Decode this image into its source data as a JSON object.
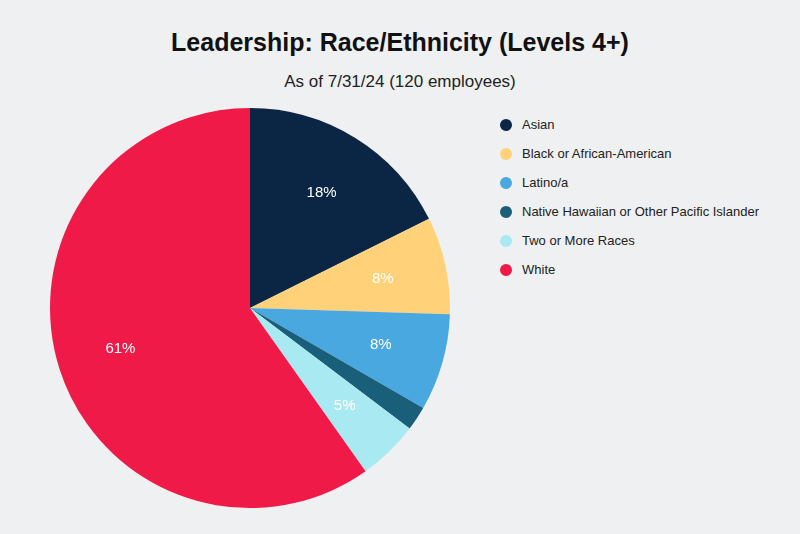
{
  "chart_data": {
    "type": "pie",
    "title": "Leadership: Race/Ethnicity (Levels 4+)",
    "subtitle": "As of 7/31/24 (120 employees)",
    "categories": [
      "Asian",
      "Black or African-American",
      "Latino/a",
      "Native Hawaiian or Other Pacific Islander",
      "Two or More Races",
      "White"
    ],
    "values": [
      18,
      8,
      8,
      2,
      5,
      61
    ],
    "value_labels": [
      "18%",
      "8%",
      "8%",
      null,
      "5%",
      "61%"
    ],
    "colors": [
      "#0b2545",
      "#ffd27a",
      "#4aa8e0",
      "#1a5f7a",
      "#a9e9f2",
      "#ef1a48"
    ],
    "data_labels": true,
    "legend": "right"
  }
}
